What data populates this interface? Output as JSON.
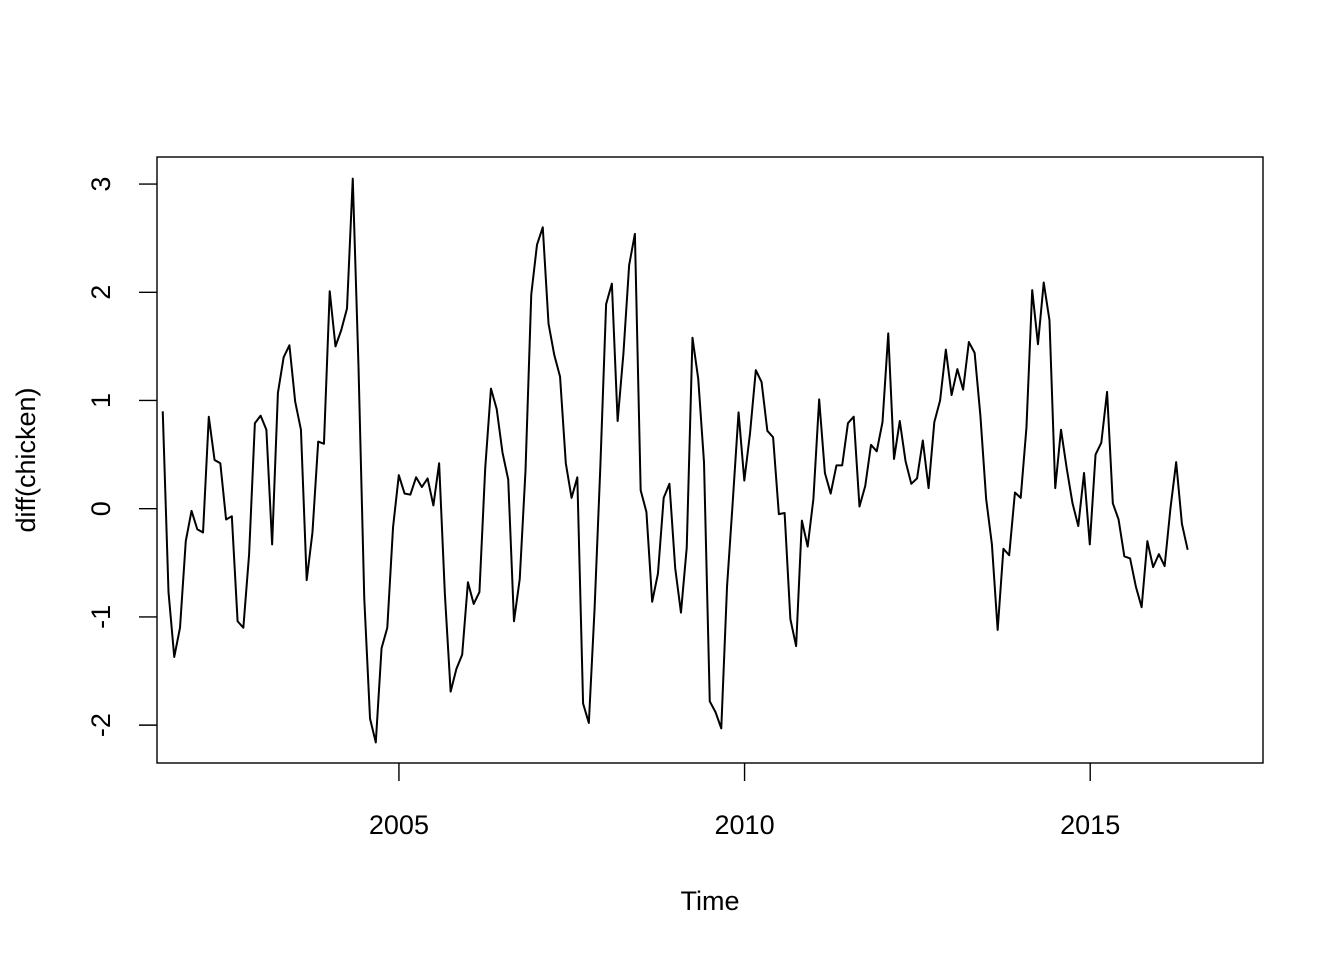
{
  "chart_data": {
    "type": "line",
    "title": "",
    "xlabel": "Time",
    "ylabel": "diff(chicken)",
    "xlim": [
      2001.5,
      2017.5
    ],
    "ylim": [
      -2.35,
      3.25
    ],
    "x_ticks": [
      2005,
      2010,
      2015
    ],
    "x_tick_labels": [
      "2005",
      "2010",
      "2015"
    ],
    "y_ticks": [
      -2,
      -1,
      0,
      1,
      2,
      3
    ],
    "y_tick_labels": [
      "-2",
      "-1",
      "0",
      "1",
      "2",
      "3"
    ],
    "grid": false,
    "series": [
      {
        "start": 2001.583,
        "step": 0.0833,
        "values": [
          0.9,
          -0.77,
          -1.37,
          -1.1,
          -0.3,
          -0.02,
          -0.19,
          -0.22,
          0.85,
          0.45,
          0.42,
          -0.1,
          -0.07,
          -1.04,
          -1.1,
          -0.42,
          0.79,
          0.86,
          0.73,
          -0.33,
          1.07,
          1.4,
          1.51,
          0.99,
          0.73,
          -0.66,
          -0.22,
          0.62,
          0.6,
          2.01,
          1.5,
          1.65,
          1.85,
          3.05,
          1.31,
          -0.83,
          -1.94,
          -2.16,
          -1.29,
          -1.1,
          -0.17,
          0.31,
          0.14,
          0.13,
          0.29,
          0.2,
          0.28,
          0.03,
          0.42,
          -0.79,
          -1.69,
          -1.48,
          -1.35,
          -0.68,
          -0.88,
          -0.77,
          0.37,
          1.11,
          0.92,
          0.52,
          0.27,
          -1.04,
          -0.65,
          0.35,
          1.98,
          2.44,
          2.6,
          1.71,
          1.42,
          1.22,
          0.42,
          0.1,
          0.29,
          -1.8,
          -1.98,
          -0.92,
          0.39,
          1.89,
          2.08,
          0.81,
          1.43,
          2.25,
          2.54,
          0.17,
          -0.03,
          -0.86,
          -0.6,
          0.1,
          0.23,
          -0.55,
          -0.96,
          -0.36,
          1.58,
          1.2,
          0.43,
          -1.78,
          -1.88,
          -2.03,
          -0.72,
          0.07,
          0.89,
          0.26,
          0.7,
          1.28,
          1.17,
          0.72,
          0.66,
          -0.05,
          -0.04,
          -1.02,
          -1.27,
          -0.11,
          -0.35,
          0.09,
          1.01,
          0.33,
          0.14,
          0.4,
          0.4,
          0.79,
          0.85,
          0.02,
          0.21,
          0.59,
          0.53,
          0.8,
          1.62,
          0.46,
          0.81,
          0.44,
          0.23,
          0.28,
          0.63,
          0.19,
          0.8,
          1.0,
          1.47,
          1.05,
          1.29,
          1.1,
          1.54,
          1.44,
          0.86,
          0.09,
          -0.33,
          -1.12,
          -0.37,
          -0.43,
          0.15,
          0.1,
          0.75,
          2.02,
          1.52,
          2.09,
          1.74,
          0.19,
          0.73,
          0.37,
          0.05,
          -0.16,
          0.33,
          -0.33,
          0.5,
          0.61,
          1.08,
          0.05,
          -0.1,
          -0.44,
          -0.46,
          -0.72,
          -0.91,
          -0.3,
          -0.54,
          -0.42,
          -0.53,
          0.0,
          0.43,
          -0.14,
          -0.38
        ]
      }
    ]
  }
}
